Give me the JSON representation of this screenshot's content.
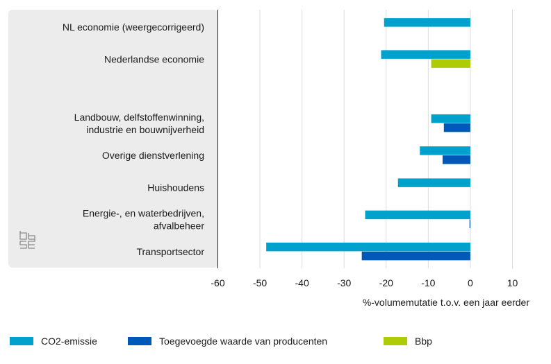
{
  "chart_data": {
    "type": "bar",
    "orientation": "horizontal",
    "categories": [
      [
        "NL economie (weergecorrigeerd)"
      ],
      [
        "Nederlandse economie"
      ],
      [],
      [
        "Landbouw, delfstoffenwinning,",
        "industrie en bouwnijverheid"
      ],
      [
        "Overige dienstverlening"
      ],
      [
        "Huishoudens"
      ],
      [
        "Energie-, en waterbedrijven,",
        "afvalbeheer"
      ],
      [
        "Transportsector"
      ]
    ],
    "series": [
      {
        "name": "CO2-emissie",
        "color": "#00a1cd",
        "values": [
          -20.5,
          -21.2,
          null,
          -9.3,
          -12.0,
          -17.2,
          -25.0,
          -48.5
        ]
      },
      {
        "name": "Toegevoegde waarde van producenten",
        "color": "#0058b8",
        "values": [
          null,
          null,
          null,
          -6.3,
          -6.6,
          null,
          -0.2,
          -25.8
        ]
      },
      {
        "name": "Bbp",
        "color": "#afcb05",
        "values": [
          null,
          -9.3,
          null,
          null,
          null,
          null,
          null,
          null
        ]
      }
    ],
    "xlim": [
      -60,
      10
    ],
    "xticks": [
      -60,
      -50,
      -40,
      -30,
      -20,
      -10,
      0,
      10
    ],
    "xlabel": "%-volumemutatie t.o.v. een jaar eerder",
    "grid": true,
    "legend": "bottom"
  }
}
